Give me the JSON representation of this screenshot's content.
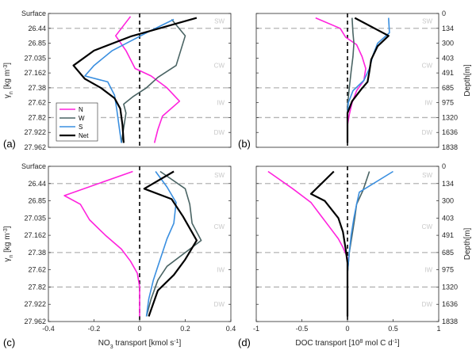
{
  "yaxis": {
    "label": "γ_n [kg m^-3]",
    "ticks": [
      "Surface",
      "26.44",
      "26.85",
      "27.035",
      "27.162",
      "27.38",
      "27.62",
      "27.82",
      "27.922",
      "27.962"
    ]
  },
  "depth_axis": {
    "label": "Depth[m]",
    "ticks": [
      "0",
      "134",
      "300",
      "403",
      "491",
      "685",
      "975",
      "1320",
      "1636",
      "1838"
    ]
  },
  "water_masses": [
    "SW",
    "CW",
    "IW",
    "DW"
  ],
  "legend": [
    "N",
    "W",
    "S",
    "Net"
  ],
  "colors": {
    "N": "#ff22dd",
    "W": "#4a6464",
    "S": "#3a8fe0",
    "Net": "#000000",
    "boundary": "#b4b4b4",
    "zero": "#000000"
  },
  "chart_data": [
    {
      "panel": "(a)",
      "type": "line",
      "xlim": [
        -0.4,
        0.4
      ],
      "xticks": [],
      "xlabel": "",
      "y_levels": [
        0,
        1,
        2,
        3,
        4,
        5,
        6,
        7,
        8,
        9
      ],
      "series": [
        {
          "name": "N",
          "x": [
            -0.04,
            -0.105,
            -0.06,
            -0.02,
            0.05,
            0.12,
            0.175,
            0.1,
            0.08,
            0.065
          ],
          "y": [
            0.2,
            1.5,
            2.5,
            3.7,
            4.2,
            5.0,
            5.9,
            6.9,
            7.8,
            8.7
          ]
        },
        {
          "name": "W",
          "x": [
            0.14,
            0.2,
            0.16,
            0.08,
            0.03,
            -0.03,
            -0.07,
            -0.06,
            -0.07,
            -0.08
          ],
          "y": [
            0.4,
            1.5,
            3.5,
            4.3,
            5.0,
            5.6,
            6.1,
            6.7,
            7.7,
            8.7
          ]
        },
        {
          "name": "S",
          "x": [
            0.15,
            0.03,
            -0.12,
            -0.2,
            -0.24,
            -0.14,
            -0.11,
            -0.1,
            -0.09,
            -0.08
          ],
          "y": [
            0.4,
            1.3,
            2.5,
            3.5,
            4.2,
            4.6,
            5.5,
            6.5,
            7.6,
            8.7
          ]
        },
        {
          "name": "Net",
          "x": [
            0.25,
            -0.04,
            -0.2,
            -0.29,
            -0.24,
            -0.17,
            -0.11,
            -0.085,
            -0.075,
            -0.07
          ],
          "y": [
            0.3,
            1.55,
            2.5,
            3.5,
            4.4,
            5.0,
            5.7,
            6.4,
            7.5,
            8.7
          ]
        }
      ]
    },
    {
      "panel": "(b)",
      "type": "line",
      "xlim": [
        -1,
        1
      ],
      "xticks": [],
      "xlabel": "",
      "y_levels": [
        0,
        1,
        2,
        3,
        4,
        5,
        6,
        7,
        8,
        9
      ],
      "series": [
        {
          "name": "N",
          "x": [
            -0.35,
            -0.08,
            -0.02,
            0.1,
            0.16,
            0.2,
            0.18,
            0.1,
            0.05,
            0.02,
            0.0,
            0.0
          ],
          "y": [
            0.3,
            1.0,
            1.6,
            2.1,
            2.9,
            3.7,
            4.5,
            5.2,
            6.0,
            6.8,
            7.5,
            8.7
          ]
        },
        {
          "name": "W",
          "x": [
            0.05,
            0.06,
            0.07,
            0.06,
            0.04,
            0.02,
            0.0,
            0.0
          ],
          "y": [
            0.3,
            1.3,
            2.0,
            2.9,
            3.9,
            5.0,
            6.2,
            8.7
          ]
        },
        {
          "name": "S",
          "x": [
            0.45,
            0.46,
            0.33,
            0.28,
            0.24,
            0.18,
            0.06,
            0.01,
            0.0,
            0.0
          ],
          "y": [
            0.3,
            1.3,
            2.0,
            2.8,
            3.7,
            4.5,
            5.2,
            6.0,
            6.8,
            8.7
          ]
        },
        {
          "name": "Net",
          "x": [
            0.08,
            0.45,
            0.33,
            0.26,
            0.24,
            0.22,
            0.15,
            0.05,
            0.0,
            0.0
          ],
          "y": [
            0.3,
            1.5,
            2.2,
            3.1,
            3.9,
            4.6,
            5.1,
            5.9,
            6.7,
            8.7
          ]
        }
      ]
    },
    {
      "panel": "(c)",
      "type": "line",
      "xlim": [
        -0.4,
        0.4
      ],
      "xticks": [
        "-0.4",
        "-0.2",
        "0",
        "0.2",
        "0.4"
      ],
      "xlabel": "NO3 transport [kmol s^-1]",
      "y_levels": [
        0,
        1,
        2,
        3,
        4,
        5,
        6,
        7,
        8,
        9
      ],
      "series": [
        {
          "name": "N",
          "x": [
            -0.03,
            -0.33,
            -0.26,
            -0.22,
            -0.15,
            -0.08,
            -0.04,
            -0.01,
            0.0,
            0.0,
            0.0
          ],
          "y": [
            0.3,
            1.7,
            2.2,
            3.1,
            4.0,
            4.8,
            5.5,
            6.2,
            7.0,
            7.8,
            8.7
          ]
        },
        {
          "name": "W",
          "x": [
            0.09,
            0.2,
            0.22,
            0.23,
            0.27,
            0.2,
            0.12,
            0.08,
            0.05,
            0.03
          ],
          "y": [
            0.3,
            1.3,
            2.2,
            3.3,
            4.3,
            5.0,
            5.8,
            6.6,
            7.7,
            8.7
          ]
        },
        {
          "name": "S",
          "x": [
            0.07,
            0.12,
            0.16,
            0.15,
            0.12,
            0.1,
            0.08,
            0.06,
            0.04,
            0.03
          ],
          "y": [
            0.3,
            1.2,
            2.1,
            3.3,
            4.2,
            5.0,
            5.8,
            6.6,
            7.7,
            8.7
          ]
        },
        {
          "name": "Net",
          "x": [
            0.15,
            0.02,
            0.14,
            0.19,
            0.25,
            0.2,
            0.15,
            0.08,
            0.04
          ],
          "y": [
            0.3,
            1.3,
            1.9,
            2.9,
            4.3,
            5.4,
            6.3,
            7.2,
            8.7
          ]
        }
      ]
    },
    {
      "panel": "(d)",
      "type": "line",
      "xlim": [
        -1,
        1
      ],
      "xticks": [
        "-1",
        "-0.5",
        "0",
        "0.5",
        "1"
      ],
      "xlabel": "DOC transport [10^8 mol C d^-1]",
      "y_levels": [
        0,
        1,
        2,
        3,
        4,
        5,
        6,
        7,
        8,
        9
      ],
      "series": [
        {
          "name": "N",
          "x": [
            -0.87,
            -0.6,
            -0.4,
            -0.3,
            -0.2,
            -0.1,
            -0.05,
            0.0,
            0.0,
            0.0
          ],
          "y": [
            0.3,
            1.3,
            2.1,
            2.8,
            3.5,
            4.2,
            4.7,
            5.3,
            6.2,
            8.7
          ]
        },
        {
          "name": "W",
          "x": [
            0.24,
            0.17,
            0.1,
            0.08,
            0.05,
            0.02,
            0.0,
            0.0
          ],
          "y": [
            0.3,
            1.4,
            2.2,
            3.0,
            4.0,
            5.0,
            6.2,
            8.7
          ]
        },
        {
          "name": "S",
          "x": [
            0.5,
            0.13,
            0.1,
            0.07,
            0.04,
            0.02,
            0.0,
            0.0
          ],
          "y": [
            0.3,
            1.5,
            2.2,
            3.0,
            4.0,
            5.0,
            6.2,
            8.7
          ]
        },
        {
          "name": "Net",
          "x": [
            -0.15,
            -0.4,
            -0.25,
            -0.1,
            -0.05,
            -0.02,
            0.0,
            0.0,
            0.0
          ],
          "y": [
            0.3,
            1.6,
            2.0,
            3.0,
            3.8,
            4.8,
            5.6,
            6.5,
            8.7
          ]
        }
      ]
    }
  ]
}
